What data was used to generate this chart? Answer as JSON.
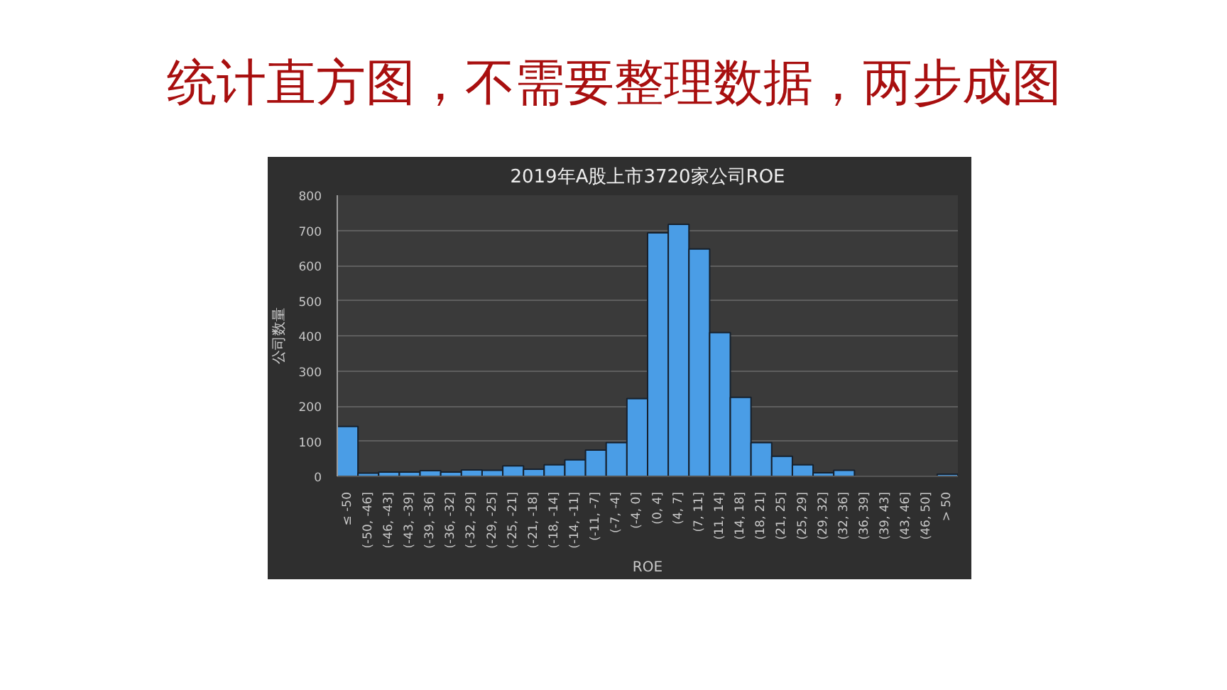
{
  "chart_data": {
    "type": "histogram",
    "title": "2019年A股上市3720家公司ROE",
    "annotations": [
      "统计直方图，不需要整理数据，两步成图"
    ],
    "xlabel": "ROE",
    "ylabel": "公司数量",
    "categories": [
      "≤ -50",
      "(-50, -46]",
      "(-46, -43]",
      "(-43, -39]",
      "(-39, -36]",
      "(-36, -32]",
      "(-32, -29]",
      "(-29, -25]",
      "(-25, -21]",
      "(-21, -18]",
      "(-18, -14]",
      "(-14, -11]",
      "(-11, -7]",
      "(-7, -4]",
      "(-4, 0]",
      "(0, 4]",
      "(4, 7]",
      "(7, 11]",
      "(11, 14]",
      "(14, 18]",
      "(18, 21]",
      "(21, 25]",
      "(25, 29]",
      "(29, 32]",
      "(32, 36]",
      "(36, 39]",
      "(39, 43]",
      "(43, 46]",
      "(46, 50]",
      "> 50"
    ],
    "values": [
      142,
      9,
      12,
      12,
      16,
      12,
      18,
      17,
      30,
      20,
      33,
      47,
      75,
      96,
      221,
      693,
      717,
      647,
      409,
      225,
      96,
      57,
      33,
      10,
      17,
      0,
      0,
      0,
      0,
      6
    ],
    "color": "#4a9de6",
    "ylim": [
      0,
      800
    ],
    "yticks": [
      0,
      100,
      200,
      300,
      400,
      500,
      600,
      700,
      800
    ],
    "grid": "y"
  }
}
